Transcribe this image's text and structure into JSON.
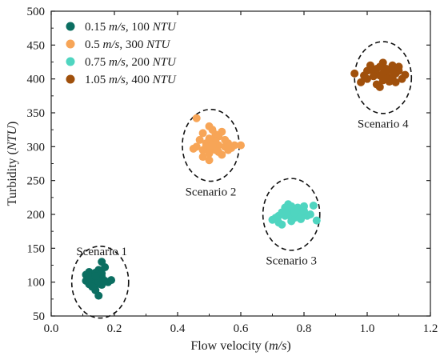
{
  "chart_data": {
    "type": "scatter",
    "xlabel": "Flow velocity (m/s)",
    "xlabel_parts": {
      "main": "Flow velocity (",
      "unit": "m/s",
      "close": ")"
    },
    "ylabel": "Turbidity (NTU)",
    "ylabel_parts": {
      "main": "Turbidity (",
      "unit": "NTU",
      "close": ")"
    },
    "xlim": [
      0.0,
      1.2
    ],
    "ylim": [
      50,
      500
    ],
    "xticks": [
      0.0,
      0.2,
      0.4,
      0.6,
      0.8,
      1.0,
      1.2
    ],
    "xtick_labels": [
      "0.0",
      "0.2",
      "0.4",
      "0.6",
      "0.8",
      "1.0",
      "1.2"
    ],
    "yticks": [
      50,
      100,
      150,
      200,
      250,
      300,
      350,
      400,
      450,
      500
    ],
    "ytick_labels": [
      "50",
      "100",
      "150",
      "200",
      "250",
      "300",
      "350",
      "400",
      "450",
      "500"
    ],
    "grid": false,
    "legend_position": "top-left",
    "series": [
      {
        "name": "0.15 m/s, 100 NTU",
        "legend_parts": {
          "num": "0.15 ",
          "unit1": "m/s",
          "mid": ", 100 ",
          "unit2": "NTU"
        },
        "color": "#0b6e61",
        "points": [
          [
            0.14,
            100
          ],
          [
            0.12,
            110
          ],
          [
            0.13,
            105
          ],
          [
            0.15,
            98
          ],
          [
            0.16,
            108
          ],
          [
            0.11,
            102
          ],
          [
            0.14,
            95
          ],
          [
            0.13,
            112
          ],
          [
            0.15,
            118
          ],
          [
            0.17,
            122
          ],
          [
            0.16,
            130
          ],
          [
            0.12,
            97
          ],
          [
            0.18,
            100
          ],
          [
            0.14,
            88
          ],
          [
            0.15,
            80
          ],
          [
            0.13,
            104
          ],
          [
            0.16,
            96
          ],
          [
            0.12,
            115
          ],
          [
            0.14,
            107
          ],
          [
            0.17,
            102
          ],
          [
            0.11,
            111
          ],
          [
            0.15,
            106
          ],
          [
            0.13,
            99
          ],
          [
            0.19,
            103
          ],
          [
            0.14,
            114
          ],
          [
            0.12,
            106
          ],
          [
            0.16,
            113
          ],
          [
            0.13,
            93
          ],
          [
            0.15,
            101
          ],
          [
            0.14,
            109
          ]
        ]
      },
      {
        "name": "0.5 m/s, 300 NTU",
        "legend_parts": {
          "num": "0.5  ",
          "unit1": "m/s",
          "mid": ", 300 ",
          "unit2": "NTU"
        },
        "color": "#f7a557",
        "points": [
          [
            0.46,
            342
          ],
          [
            0.5,
            330
          ],
          [
            0.48,
            320
          ],
          [
            0.52,
            318
          ],
          [
            0.51,
            310
          ],
          [
            0.49,
            305
          ],
          [
            0.53,
            302
          ],
          [
            0.55,
            300
          ],
          [
            0.45,
            297
          ],
          [
            0.5,
            296
          ],
          [
            0.52,
            295
          ],
          [
            0.54,
            288
          ],
          [
            0.5,
            280
          ],
          [
            0.48,
            285
          ],
          [
            0.56,
            305
          ],
          [
            0.58,
            302
          ],
          [
            0.6,
            302
          ],
          [
            0.47,
            310
          ],
          [
            0.51,
            325
          ],
          [
            0.53,
            315
          ],
          [
            0.49,
            300
          ],
          [
            0.55,
            310
          ],
          [
            0.5,
            290
          ],
          [
            0.52,
            308
          ],
          [
            0.57,
            298
          ],
          [
            0.46,
            300
          ],
          [
            0.54,
            322
          ],
          [
            0.48,
            295
          ],
          [
            0.51,
            302
          ],
          [
            0.53,
            292
          ],
          [
            0.5,
            312
          ],
          [
            0.56,
            295
          ]
        ]
      },
      {
        "name": "0.75 m/s, 200 NTU",
        "legend_parts": {
          "num": "0.75 ",
          "unit1": "m/s",
          "mid": ", 200 ",
          "unit2": "NTU"
        },
        "color": "#4fd5c0",
        "points": [
          [
            0.7,
            192
          ],
          [
            0.72,
            198
          ],
          [
            0.74,
            205
          ],
          [
            0.76,
            200
          ],
          [
            0.78,
            210
          ],
          [
            0.75,
            215
          ],
          [
            0.8,
            212
          ],
          [
            0.77,
            195
          ],
          [
            0.73,
            185
          ],
          [
            0.79,
            202
          ],
          [
            0.81,
            198
          ],
          [
            0.76,
            190
          ],
          [
            0.74,
            210
          ],
          [
            0.72,
            188
          ],
          [
            0.78,
            200
          ],
          [
            0.75,
            205
          ],
          [
            0.83,
            213
          ],
          [
            0.84,
            191
          ],
          [
            0.71,
            195
          ],
          [
            0.77,
            207
          ],
          [
            0.79,
            193
          ],
          [
            0.76,
            212
          ],
          [
            0.74,
            198
          ],
          [
            0.8,
            205
          ],
          [
            0.73,
            203
          ],
          [
            0.78,
            196
          ],
          [
            0.75,
            199
          ],
          [
            0.77,
            202
          ],
          [
            0.82,
            200
          ]
        ]
      },
      {
        "name": "1.05 m/s, 400 NTU",
        "legend_parts": {
          "num": "1.05 ",
          "unit1": "m/s",
          "mid": ", 400 ",
          "unit2": "NTU"
        },
        "color": "#a0500c",
        "points": [
          [
            0.96,
            408
          ],
          [
            1.0,
            400
          ],
          [
            1.02,
            410
          ],
          [
            1.04,
            405
          ],
          [
            1.06,
            415
          ],
          [
            1.08,
            420
          ],
          [
            1.1,
            412
          ],
          [
            1.05,
            398
          ],
          [
            1.03,
            392
          ],
          [
            1.07,
            402
          ],
          [
            1.09,
            408
          ],
          [
            1.12,
            406
          ],
          [
            1.01,
            420
          ],
          [
            1.05,
            424
          ],
          [
            0.98,
            395
          ],
          [
            1.04,
            388
          ],
          [
            1.06,
            410
          ],
          [
            1.08,
            402
          ],
          [
            1.1,
            418
          ],
          [
            1.02,
            404
          ],
          [
            1.0,
            412
          ],
          [
            1.07,
            396
          ],
          [
            1.11,
            400
          ],
          [
            1.03,
            415
          ],
          [
            1.05,
            408
          ],
          [
            1.09,
            395
          ],
          [
            0.99,
            405
          ],
          [
            1.06,
            400
          ],
          [
            1.08,
            412
          ],
          [
            1.04,
            418
          ]
        ]
      }
    ],
    "annotations": [
      {
        "label": "Scenario 1",
        "cx": 0.155,
        "cy": 100,
        "rx": 0.09,
        "ry": 53,
        "label_x": 0.16,
        "label_y": 140
      },
      {
        "label": "Scenario 2",
        "cx": 0.505,
        "cy": 302,
        "rx": 0.09,
        "ry": 53,
        "label_x": 0.505,
        "label_y": 228
      },
      {
        "label": "Scenario 3",
        "cx": 0.76,
        "cy": 200,
        "rx": 0.09,
        "ry": 53,
        "label_x": 0.76,
        "label_y": 126
      },
      {
        "label": "Scenario 4",
        "cx": 1.05,
        "cy": 402,
        "rx": 0.09,
        "ry": 53,
        "label_x": 1.05,
        "label_y": 328
      }
    ]
  }
}
